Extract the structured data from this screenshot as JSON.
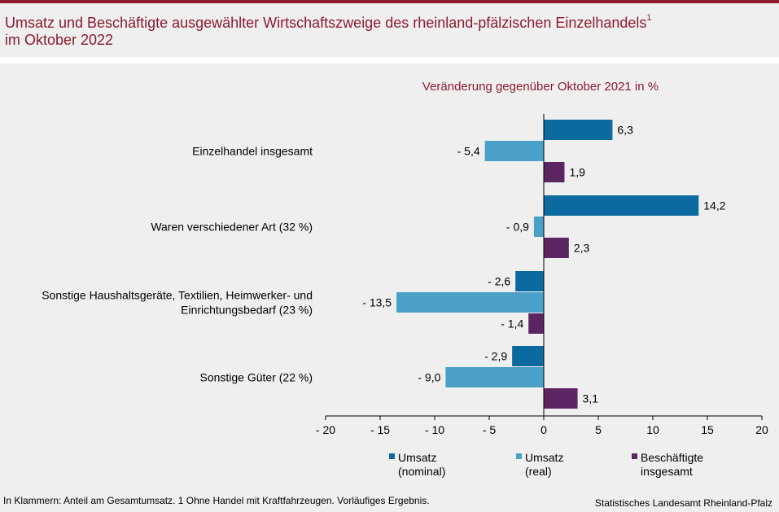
{
  "header": {
    "title_line1": "Umsatz und Beschäftigte ausgewählter Wirtschaftszweige des rheinland-pfälzischen Einzelhandels",
    "title_sup": "1",
    "title_line2": "im Oktober 2022"
  },
  "footer": {
    "footnote": "In Klammern: Anteil am Gesamtumsatz. 1 Ohne Handel mit Kraftfahrzeugen. Vorläufiges Ergebnis.",
    "source": "Statistisches Landesamt Rheinland-Pfalz"
  },
  "colors": {
    "umsatz_nominal": "#0b6aa0",
    "umsatz_real": "#4ba0c8",
    "beschaeftigte": "#5b2463",
    "title": "#8b1a2e"
  },
  "chart_data": {
    "type": "bar",
    "orientation": "horizontal",
    "subtitle": "Veränderung gegenüber Oktober 2021 in %",
    "categories": [
      [
        "Einzelhandel insgesamt"
      ],
      [
        "Waren verschiedener Art (32 %)"
      ],
      [
        "Sonstige Haushaltsgeräte, Textilien, Heimwerker- und",
        "Einrichtungsbedarf (23 %)"
      ],
      [
        "Sonstige Güter (22 %)"
      ]
    ],
    "series": [
      {
        "name": [
          "Umsatz",
          "(nominal)"
        ],
        "values": [
          6.3,
          14.2,
          -2.6,
          -2.9
        ],
        "labels": [
          "6,3",
          "14,2",
          "- 2,6",
          "- 2,9"
        ]
      },
      {
        "name": [
          "Umsatz",
          "(real)"
        ],
        "values": [
          -5.4,
          -0.9,
          -13.5,
          -9.0
        ],
        "labels": [
          "- 5,4",
          "- 0,9",
          "- 13,5",
          "- 9,0"
        ]
      },
      {
        "name": [
          "Beschäftigte",
          "insgesamt"
        ],
        "values": [
          1.9,
          2.3,
          -1.4,
          3.1
        ],
        "labels": [
          "1,9",
          "2,3",
          "- 1,4",
          "3,1"
        ]
      }
    ],
    "xlim": [
      -20,
      20
    ],
    "ticks": [
      -20,
      -15,
      -10,
      -5,
      0,
      5,
      10,
      15,
      20
    ],
    "tick_labels": [
      "- 20",
      "- 15",
      "- 10",
      "- 5",
      "0",
      "5",
      "10",
      "15",
      "20"
    ]
  }
}
